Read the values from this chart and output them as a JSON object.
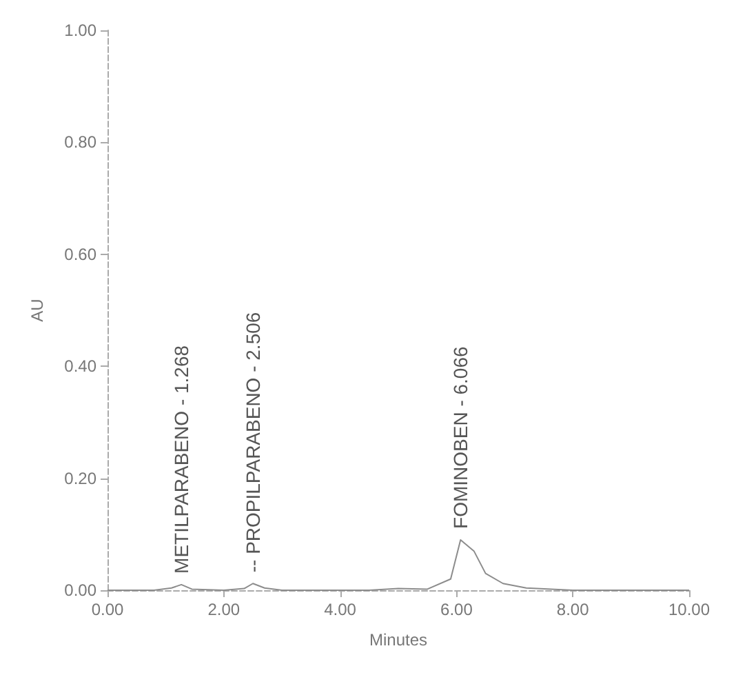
{
  "chart_data": {
    "type": "line",
    "xlabel": "Minutes",
    "ylabel": "AU",
    "x": [
      0,
      0.8,
      1.1,
      1.27,
      1.45,
      2.0,
      2.35,
      2.5,
      2.7,
      3.0,
      4.5,
      5.0,
      5.5,
      5.9,
      6.07,
      6.3,
      6.5,
      6.8,
      7.2,
      8.0,
      9.0,
      10.0
    ],
    "series": [
      {
        "color": "#8c8c8c",
        "values": [
          0,
          0,
          0.004,
          0.01,
          0.002,
          0,
          0.003,
          0.012,
          0.004,
          0,
          0,
          0.003,
          0.002,
          0.02,
          0.09,
          0.07,
          0.03,
          0.012,
          0.004,
          0,
          0,
          0
        ]
      }
    ],
    "xlim": [
      0,
      10
    ],
    "xticks": [
      {
        "value": 0,
        "label": "0.00"
      },
      {
        "value": 2,
        "label": "2.00"
      },
      {
        "value": 4,
        "label": "4.00"
      },
      {
        "value": 6,
        "label": "6.00"
      },
      {
        "value": 8,
        "label": "8.00"
      },
      {
        "value": 10,
        "label": "10.00"
      }
    ],
    "ylim": [
      0,
      1
    ],
    "yticks": [
      {
        "value": 0,
        "label": "0.00"
      },
      {
        "value": 0.2,
        "label": "0.20"
      },
      {
        "value": 0.4,
        "label": "0.40"
      },
      {
        "value": 0.6,
        "label": "0.60"
      },
      {
        "value": 0.8,
        "label": "0.80"
      },
      {
        "value": 1,
        "label": "1.00"
      }
    ],
    "annotations": [
      {
        "text": "METILPARABENO - 1.268",
        "x": 1.27,
        "y": 0.01
      },
      {
        "text": "-- PROPILPARABENO - 2.506",
        "x": 2.5,
        "y": 0.012
      },
      {
        "text": "FOMINOBEN - 6.066",
        "x": 6.07,
        "y": 0.09
      }
    ],
    "grid": false,
    "marker": "none",
    "line_style": "solid"
  }
}
